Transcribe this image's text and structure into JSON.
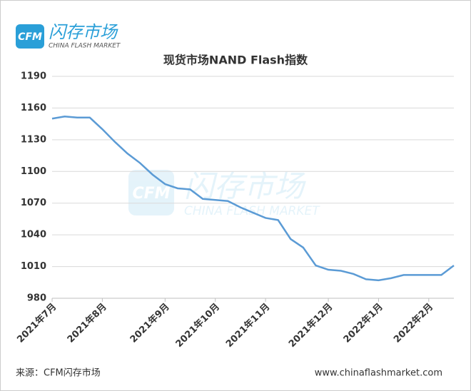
{
  "chart_data": {
    "type": "line",
    "title": "现货市场NAND Flash指数",
    "logo": {
      "badge": "CFM",
      "name": "闪存市场",
      "sub": "CHINA FLASH MARKET"
    },
    "source": "来源：CFM闪存市场",
    "website": "www.chinaflashmarket.com",
    "categories": [
      "2021年7月",
      null,
      null,
      null,
      "2021年8月",
      null,
      null,
      null,
      null,
      "2021年9月",
      null,
      null,
      null,
      "2021年10月",
      null,
      null,
      null,
      "2021年11月",
      null,
      null,
      null,
      null,
      "2021年12月",
      null,
      null,
      null,
      "2022年1月",
      null,
      null,
      null,
      "2022年2月",
      null,
      null
    ],
    "series": [
      {
        "name": "NAND Flash",
        "color": "#5b9bd5",
        "values": [
          1150,
          1152,
          1151,
          1151,
          1140,
          1128,
          1117,
          1108,
          1097,
          1088,
          1084,
          1083,
          1074,
          1073,
          1072,
          1066,
          1061,
          1056,
          1054,
          1036,
          1028,
          1011,
          1007,
          1006,
          1003,
          998,
          997,
          999,
          1002,
          1002,
          1002,
          1002,
          1011
        ]
      }
    ],
    "ylim": [
      980,
      1190
    ],
    "yticks": [
      980,
      1010,
      1040,
      1070,
      1100,
      1130,
      1160,
      1190
    ],
    "grid": true
  }
}
